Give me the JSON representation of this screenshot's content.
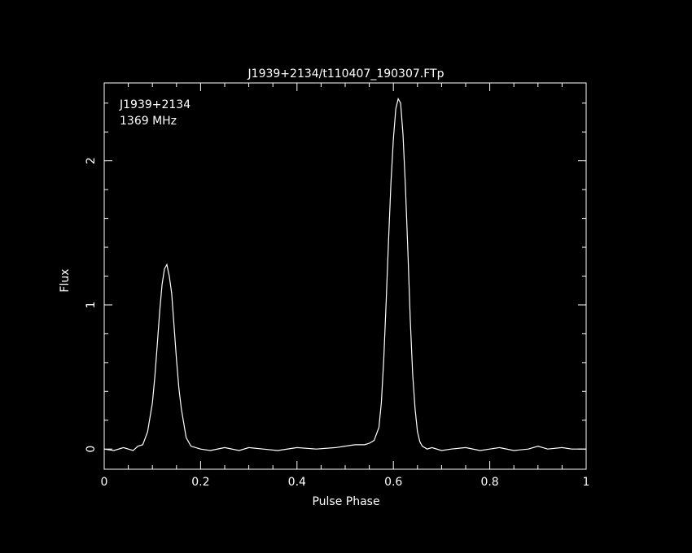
{
  "chart_data": {
    "type": "line",
    "title": "J1939+2134/t110407_190307.FTp",
    "xlabel": "Pulse Phase",
    "ylabel": "Flux",
    "xlim": [
      0,
      1
    ],
    "ylim": [
      -0.14,
      2.54
    ],
    "xticks": [
      0,
      0.2,
      0.4,
      0.6,
      0.8,
      1
    ],
    "xtick_labels": [
      "0",
      "0.2",
      "0.4",
      "0.6",
      "0.8",
      "1"
    ],
    "yticks": [
      0,
      1,
      2
    ],
    "ytick_labels": [
      "0",
      "1",
      "2"
    ],
    "grid": false,
    "annotations": [
      "J1939+2134",
      "1369 MHz"
    ],
    "colors": {
      "background": "#000000",
      "foreground": "#ffffff"
    },
    "series": [
      {
        "x": [
          0,
          0.02,
          0.04,
          0.06,
          0.07,
          0.08,
          0.09,
          0.1,
          0.105,
          0.11,
          0.115,
          0.12,
          0.125,
          0.13,
          0.135,
          0.14,
          0.145,
          0.15,
          0.155,
          0.16,
          0.165,
          0.17,
          0.18,
          0.19,
          0.2,
          0.22,
          0.25,
          0.28,
          0.3,
          0.33,
          0.36,
          0.4,
          0.44,
          0.48,
          0.5,
          0.52,
          0.54,
          0.55,
          0.56,
          0.57,
          0.575,
          0.58,
          0.585,
          0.59,
          0.595,
          0.6,
          0.605,
          0.61,
          0.615,
          0.62,
          0.625,
          0.63,
          0.635,
          0.64,
          0.645,
          0.65,
          0.655,
          0.66,
          0.67,
          0.68,
          0.7,
          0.72,
          0.75,
          0.78,
          0.8,
          0.82,
          0.85,
          0.88,
          0.9,
          0.92,
          0.95,
          0.97,
          1
        ],
        "y": [
          0,
          -0.01,
          0.01,
          -0.01,
          0.02,
          0.03,
          0.12,
          0.32,
          0.5,
          0.72,
          0.95,
          1.14,
          1.25,
          1.28,
          1.2,
          1.08,
          0.85,
          0.62,
          0.42,
          0.28,
          0.18,
          0.08,
          0.02,
          0.01,
          0,
          -0.01,
          0.01,
          -0.01,
          0.01,
          0,
          -0.01,
          0.01,
          0,
          0.01,
          0.02,
          0.03,
          0.03,
          0.04,
          0.06,
          0.15,
          0.32,
          0.62,
          1.02,
          1.45,
          1.85,
          2.15,
          2.36,
          2.43,
          2.4,
          2.18,
          1.82,
          1.38,
          0.9,
          0.52,
          0.28,
          0.12,
          0.05,
          0.02,
          0,
          0.01,
          -0.01,
          0,
          0.01,
          -0.01,
          0,
          0.01,
          -0.01,
          0,
          0.02,
          0,
          0.01,
          0,
          0
        ]
      }
    ]
  }
}
